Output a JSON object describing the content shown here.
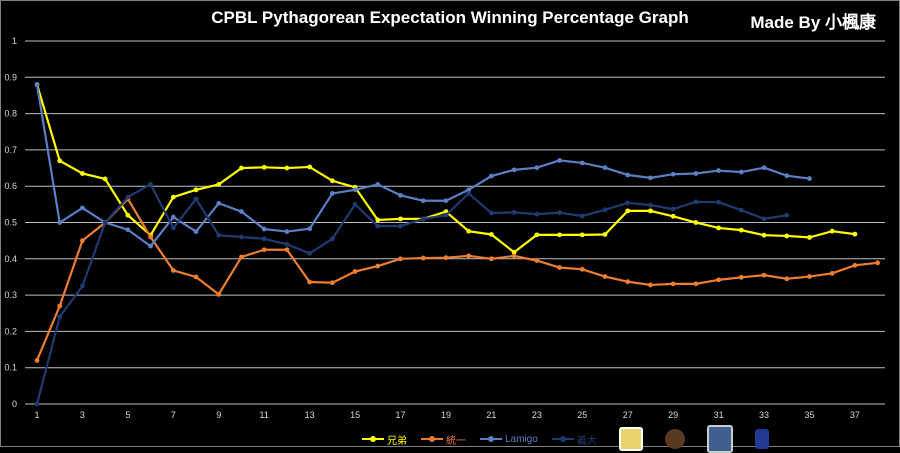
{
  "chart_data": {
    "type": "line",
    "title": "CPBL Pythagorean Expectation Winning Percentage Graph",
    "credit": "Made By 小楓康",
    "xlabel": "",
    "ylabel": "",
    "ylim": [
      0,
      1
    ],
    "xlim": [
      1,
      38
    ],
    "yticks": [
      "0",
      "0.1",
      "0.2",
      "0.3",
      "0.4",
      "0.5",
      "0.6",
      "0.7",
      "0.8",
      "0.9",
      "1"
    ],
    "xticks": [
      "1",
      "3",
      "5",
      "7",
      "9",
      "11",
      "13",
      "15",
      "17",
      "19",
      "21",
      "23",
      "25",
      "27",
      "29",
      "31",
      "33",
      "35",
      "37"
    ],
    "grid": true,
    "legend_position": "bottom",
    "series": [
      {
        "name": "兄弟",
        "color": "#ffff00",
        "values": [
          0.88,
          0.67,
          0.635,
          0.62,
          0.52,
          0.465,
          0.57,
          0.59,
          0.605,
          0.65,
          0.652,
          0.65,
          0.653,
          0.615,
          0.597,
          0.507,
          0.51,
          0.51,
          0.53,
          0.476,
          0.467,
          0.418,
          0.466,
          0.466,
          0.466,
          0.467,
          0.532,
          0.532,
          0.517,
          0.5,
          0.485,
          0.479,
          0.465,
          0.463,
          0.459,
          0.476,
          0.468
        ]
      },
      {
        "name": "統一",
        "color": "#ed7d31",
        "values": [
          0.12,
          0.27,
          0.45,
          0.5,
          0.565,
          0.46,
          0.368,
          0.35,
          0.302,
          0.405,
          0.425,
          0.425,
          0.336,
          0.334,
          0.365,
          0.38,
          0.4,
          0.402,
          0.403,
          0.408,
          0.4,
          0.408,
          0.395,
          0.376,
          0.371,
          0.351,
          0.337,
          0.328,
          0.331,
          0.331,
          0.342,
          0.349,
          0.355,
          0.345,
          0.351,
          0.36,
          0.382,
          0.389
        ]
      },
      {
        "name": "Lamigo",
        "color": "#5b7fc4",
        "values": [
          0.88,
          0.5,
          0.54,
          0.5,
          0.48,
          0.435,
          0.515,
          0.475,
          0.553,
          0.53,
          0.482,
          0.475,
          0.483,
          0.58,
          0.59,
          0.605,
          0.575,
          0.56,
          0.56,
          0.59,
          0.628,
          0.645,
          0.651,
          0.671,
          0.664,
          0.651,
          0.631,
          0.623,
          0.633,
          0.635,
          0.643,
          0.639,
          0.651,
          0.629,
          0.621
        ]
      },
      {
        "name": "義大",
        "color": "#1f3a70",
        "values": [
          0,
          0.24,
          0.325,
          0.5,
          0.57,
          0.605,
          0.485,
          0.565,
          0.465,
          0.46,
          0.455,
          0.44,
          0.415,
          0.455,
          0.55,
          0.49,
          0.49,
          0.51,
          0.52,
          0.58,
          0.526,
          0.528,
          0.523,
          0.527,
          0.518,
          0.535,
          0.554,
          0.548,
          0.537,
          0.557,
          0.556,
          0.534,
          0.51,
          0.52
        ]
      }
    ]
  },
  "logos": [
    "brothers-logo",
    "lions-logo",
    "lamigo-logo",
    "rhinos-logo"
  ]
}
